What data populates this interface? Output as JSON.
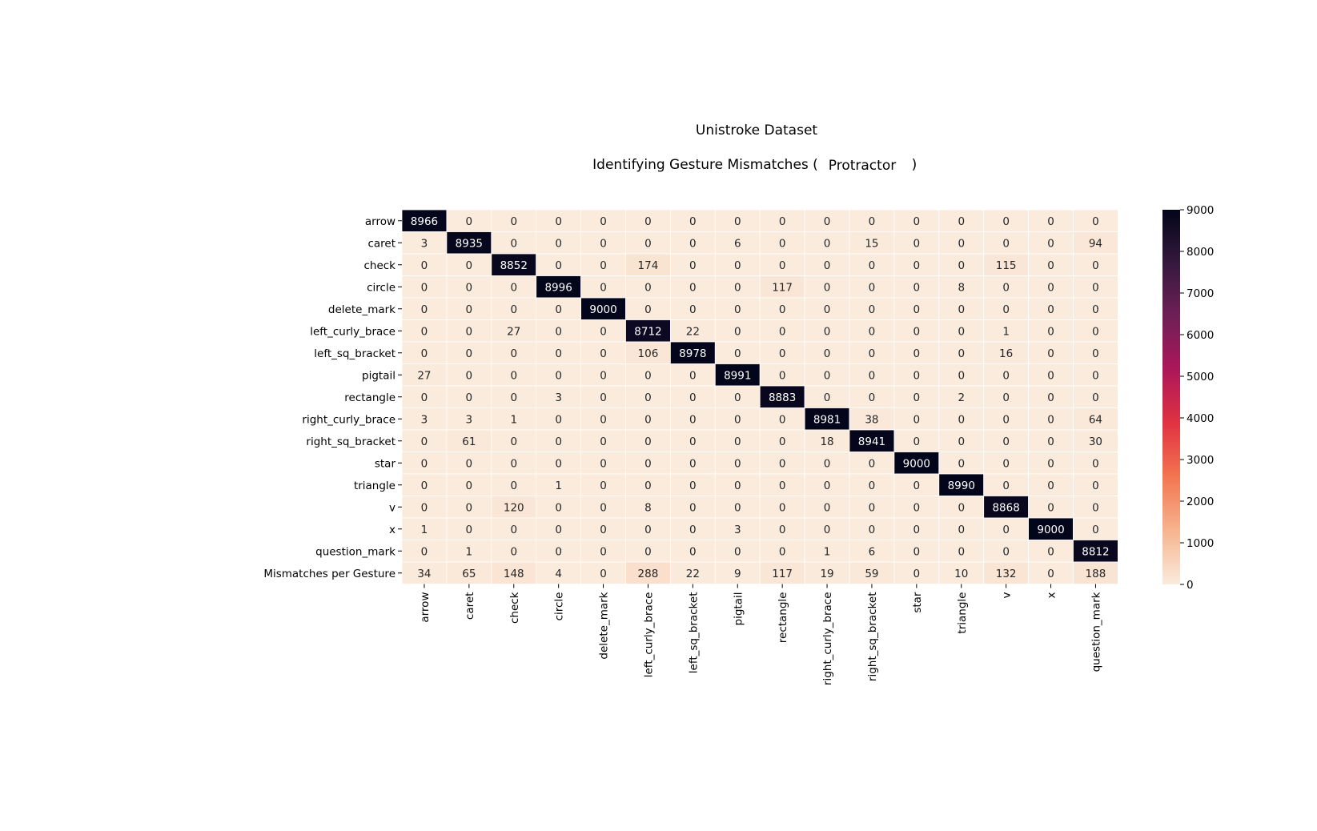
{
  "chart_data": {
    "type": "heatmap",
    "title": "Unistroke Dataset",
    "subtitle_prefix": "Identifying Gesture Mismatches (",
    "subtitle_method": "Protractor",
    "subtitle_suffix": ")",
    "row_labels": [
      "arrow",
      "caret",
      "check",
      "circle",
      "delete_mark",
      "left_curly_brace",
      "left_sq_bracket",
      "pigtail",
      "rectangle",
      "right_curly_brace",
      "right_sq_bracket",
      "star",
      "triangle",
      "v",
      "x",
      "question_mark",
      "Mismatches per Gesture"
    ],
    "col_labels": [
      "arrow",
      "caret",
      "check",
      "circle",
      "delete_mark",
      "left_curly_brace",
      "left_sq_bracket",
      "pigtail",
      "rectangle",
      "right_curly_brace",
      "right_sq_bracket",
      "star",
      "triangle",
      "v",
      "x",
      "question_mark"
    ],
    "values": [
      [
        8966,
        0,
        0,
        0,
        0,
        0,
        0,
        0,
        0,
        0,
        0,
        0,
        0,
        0,
        0,
        0
      ],
      [
        3,
        8935,
        0,
        0,
        0,
        0,
        0,
        6,
        0,
        0,
        15,
        0,
        0,
        0,
        0,
        94
      ],
      [
        0,
        0,
        8852,
        0,
        0,
        174,
        0,
        0,
        0,
        0,
        0,
        0,
        0,
        115,
        0,
        0
      ],
      [
        0,
        0,
        0,
        8996,
        0,
        0,
        0,
        0,
        117,
        0,
        0,
        0,
        8,
        0,
        0,
        0
      ],
      [
        0,
        0,
        0,
        0,
        9000,
        0,
        0,
        0,
        0,
        0,
        0,
        0,
        0,
        0,
        0,
        0
      ],
      [
        0,
        0,
        27,
        0,
        0,
        8712,
        22,
        0,
        0,
        0,
        0,
        0,
        0,
        1,
        0,
        0
      ],
      [
        0,
        0,
        0,
        0,
        0,
        106,
        8978,
        0,
        0,
        0,
        0,
        0,
        0,
        16,
        0,
        0
      ],
      [
        27,
        0,
        0,
        0,
        0,
        0,
        0,
        8991,
        0,
        0,
        0,
        0,
        0,
        0,
        0,
        0
      ],
      [
        0,
        0,
        0,
        3,
        0,
        0,
        0,
        0,
        8883,
        0,
        0,
        0,
        2,
        0,
        0,
        0
      ],
      [
        3,
        3,
        1,
        0,
        0,
        0,
        0,
        0,
        0,
        8981,
        38,
        0,
        0,
        0,
        0,
        64
      ],
      [
        0,
        61,
        0,
        0,
        0,
        0,
        0,
        0,
        0,
        18,
        8941,
        0,
        0,
        0,
        0,
        30
      ],
      [
        0,
        0,
        0,
        0,
        0,
        0,
        0,
        0,
        0,
        0,
        0,
        9000,
        0,
        0,
        0,
        0
      ],
      [
        0,
        0,
        0,
        1,
        0,
        0,
        0,
        0,
        0,
        0,
        0,
        0,
        8990,
        0,
        0,
        0
      ],
      [
        0,
        0,
        120,
        0,
        0,
        8,
        0,
        0,
        0,
        0,
        0,
        0,
        0,
        8868,
        0,
        0
      ],
      [
        1,
        0,
        0,
        0,
        0,
        0,
        0,
        3,
        0,
        0,
        0,
        0,
        0,
        0,
        9000,
        0
      ],
      [
        0,
        1,
        0,
        0,
        0,
        0,
        0,
        0,
        0,
        1,
        6,
        0,
        0,
        0,
        0,
        8812
      ],
      [
        34,
        65,
        148,
        4,
        0,
        288,
        22,
        9,
        117,
        19,
        59,
        0,
        10,
        132,
        0,
        188
      ]
    ],
    "colorbar": {
      "min": 0,
      "max": 9000,
      "ticks": [
        0,
        1000,
        2000,
        3000,
        4000,
        5000,
        6000,
        7000,
        8000,
        9000
      ],
      "colormap": "rocket_r",
      "stops": [
        "#faebdd",
        "#f6b48f",
        "#f37651",
        "#e13342",
        "#ad1759",
        "#701f57",
        "#35193e",
        "#03051a"
      ]
    },
    "grid_line_color": "#ffffff",
    "annotation_light_text": "#ffffff",
    "annotation_dark_text": "#262626"
  }
}
